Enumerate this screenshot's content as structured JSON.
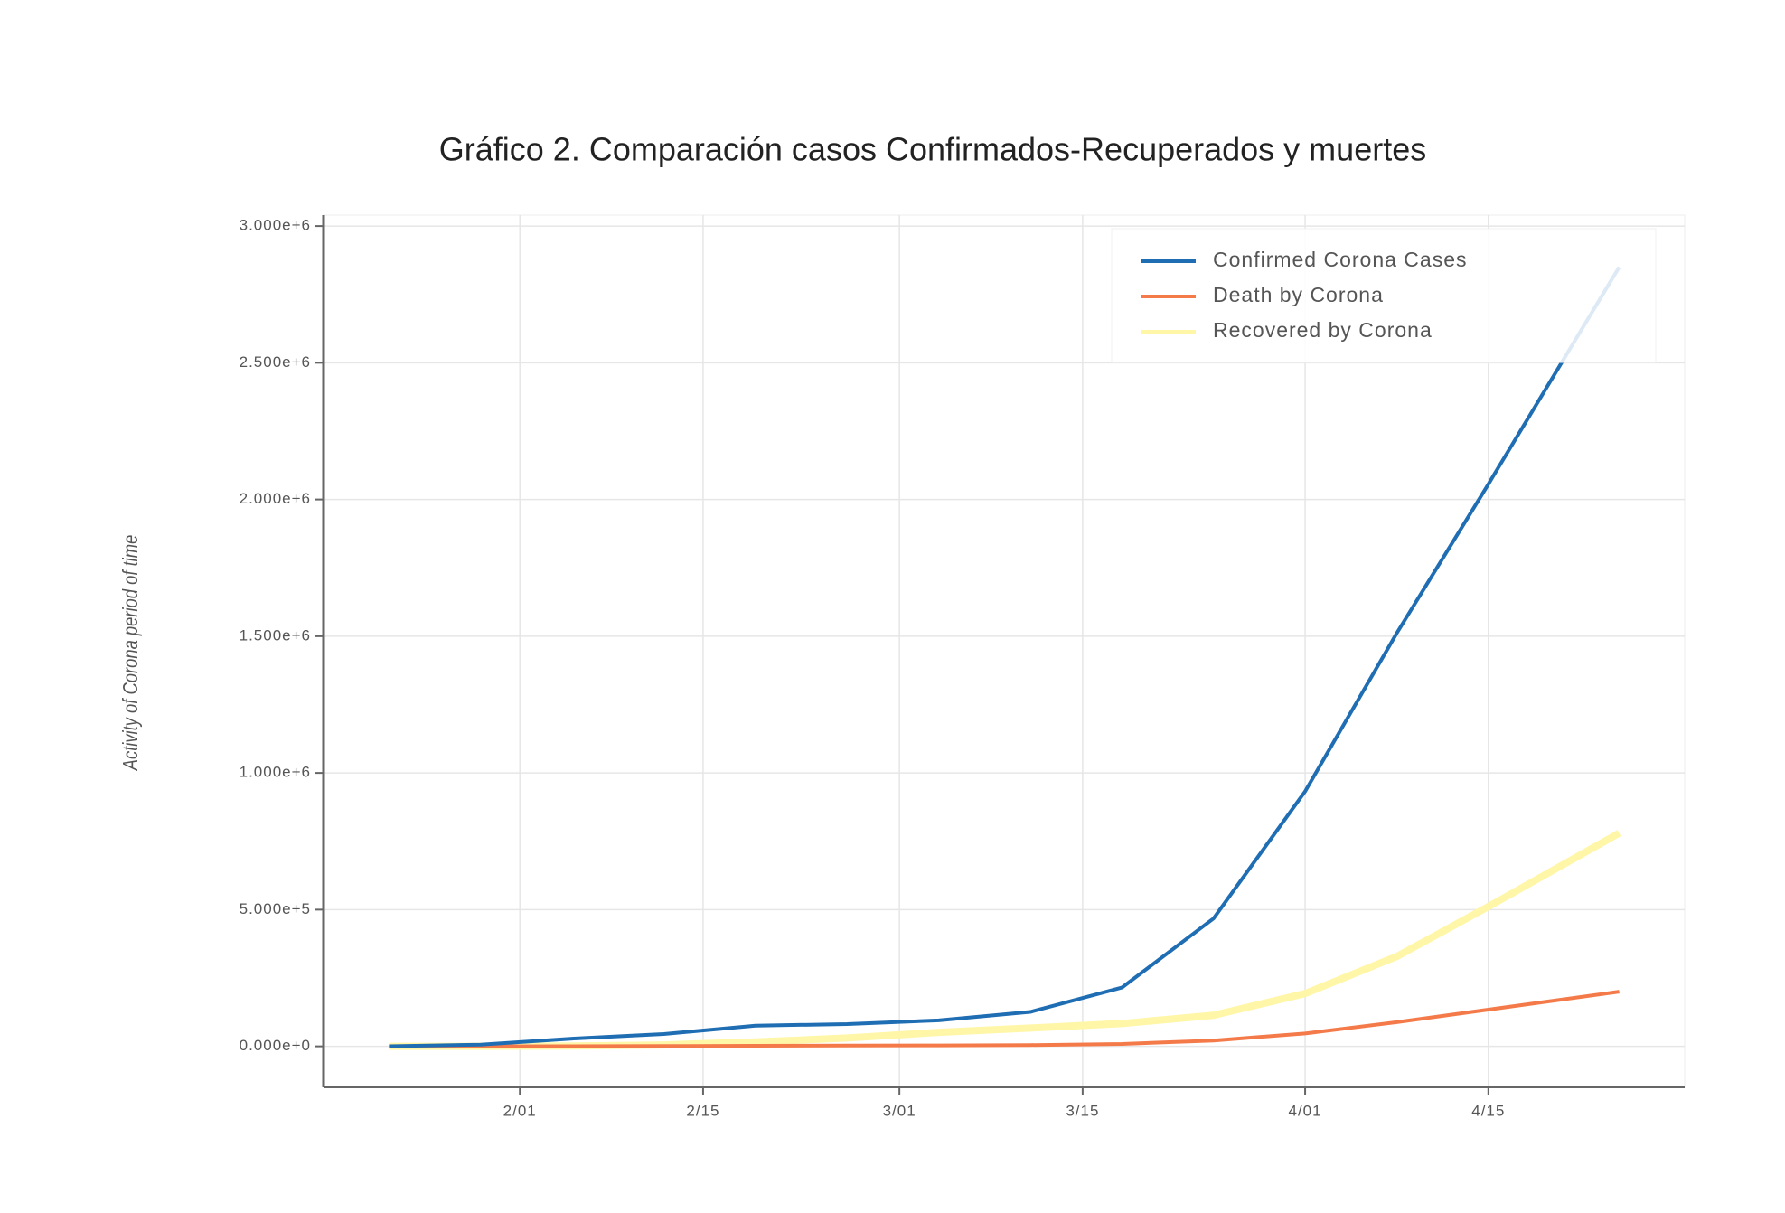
{
  "chart_data": {
    "type": "line",
    "title": "Gráfico 2.  Comparación casos Confirmados-Recuperados y muertes",
    "y_label": "Activity of Corona period of time",
    "x": [
      "1/22",
      "1/29",
      "2/05",
      "2/12",
      "2/19",
      "2/26",
      "3/04",
      "3/11",
      "3/18",
      "3/25",
      "4/01",
      "4/08",
      "4/15",
      "4/25"
    ],
    "series": [
      {
        "name": "Confirmed Corona Cases",
        "color": "#1f6db3",
        "values": [
          555,
          6165,
          28276,
          45171,
          75641,
          81397,
          95120,
          125865,
          214910,
          467593,
          932605,
          1511104,
          2056054,
          2850000
        ]
      },
      {
        "name": "Death by Corona",
        "color": "#f47a4a",
        "values": [
          17,
          133,
          565,
          1118,
          2122,
          2770,
          3281,
          4615,
          8733,
          21181,
          47180,
          88338,
          134177,
          200000
        ]
      },
      {
        "name": "Recovered by Corona",
        "color": "#fff6a8",
        "values": [
          28,
          126,
          1124,
          5150,
          16121,
          30384,
          51170,
          67003,
          83313,
          113770,
          193177,
          328661,
          511000,
          780000
        ]
      }
    ],
    "xlim": [
      "1/17",
      "4/30"
    ],
    "xticks": [
      "2/01",
      "2/15",
      "3/01",
      "3/15",
      "4/01",
      "4/15"
    ],
    "ylim": [
      -150000,
      3040000
    ],
    "yticks": [
      {
        "value": 0,
        "label": "0.000e+0"
      },
      {
        "value": 500000,
        "label": "5.000e+5"
      },
      {
        "value": 1000000,
        "label": "1.000e+6"
      },
      {
        "value": 1500000,
        "label": "1.500e+6"
      },
      {
        "value": 2000000,
        "label": "2.000e+6"
      },
      {
        "value": 2500000,
        "label": "2.500e+6"
      },
      {
        "value": 3000000,
        "label": "3.000e+6"
      }
    ],
    "grid": true,
    "legend": "upper right"
  }
}
